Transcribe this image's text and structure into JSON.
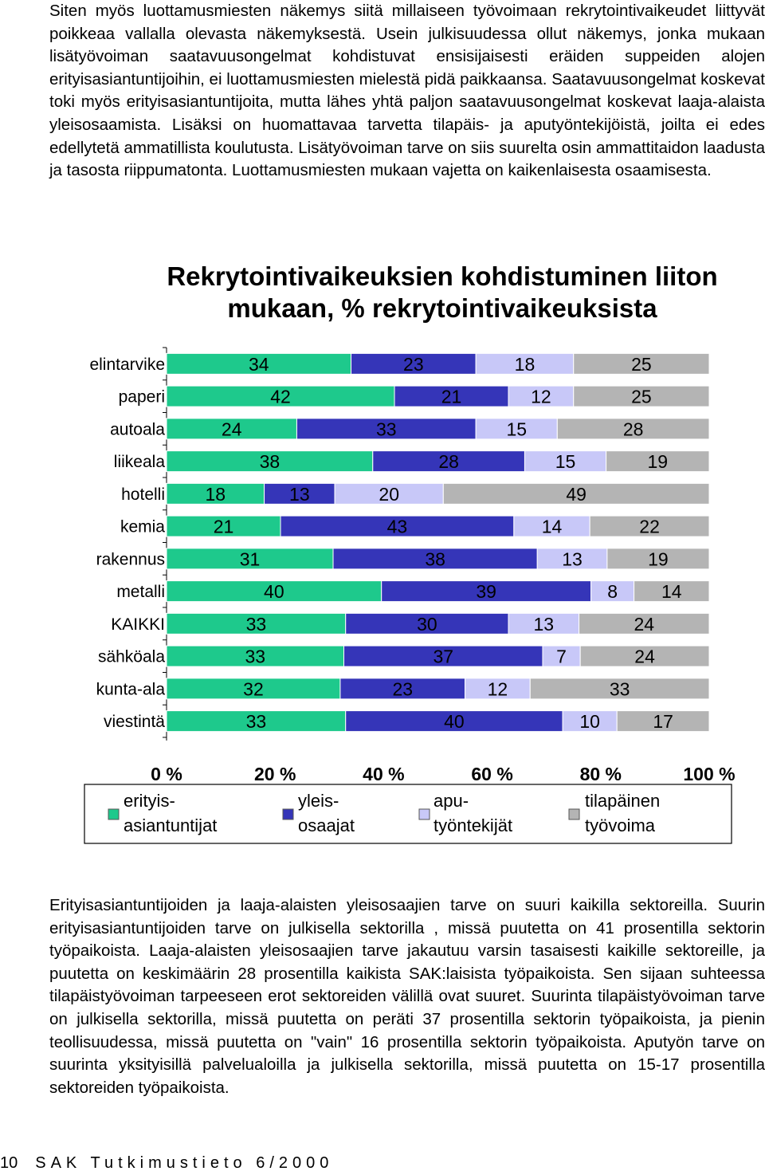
{
  "intro_text": "Siten myös luottamusmiesten näkemys siitä millaiseen työvoimaan rekrytointivaikeudet liittyvät poikkeaa vallalla olevasta näkemyksestä. Usein julkisuudessa ollut näkemys, jonka mukaan lisätyövoiman saatavuusongelmat kohdistuvat ensisijaisesti eräiden suppeiden alojen erityisasiantuntijoihin, ei luottamusmiesten mielestä pidä paikkaansa. Saatavuusongelmat koskevat toki myös erityisasiantuntijoita, mutta lähes yhtä paljon saatavuusongelmat koskevat laaja-alaista yleisosaamista. Lisäksi on huomattavaa tarvetta tilapäis- ja aputyöntekijöistä, joilta ei edes edellytetä ammatillista koulutusta. Lisätyövoiman tarve on siis suurelta osin ammattitaidon laadusta ja tasosta riippumatonta. Luottamusmiesten mukaan vajetta on kaikenlaisesta osaamisesta.",
  "chart_data": {
    "type": "bar",
    "orientation": "horizontal",
    "stacked": "percent",
    "title": "Rekrytointivaikeuksien kohdistuminen liiton mukaan, % rekrytointivaikeuksista",
    "categories": [
      "elintarvike",
      "paperi",
      "autoala",
      "liikeala",
      "hotelli",
      "kemia",
      "rakennus",
      "metalli",
      "KAIKKI",
      "sähköala",
      "kunta-ala",
      "viestintä"
    ],
    "series": [
      {
        "name": "erityis-asiantuntijat",
        "legend_lines": [
          "erityis-",
          "asiantuntijat"
        ],
        "color": "#1ec98c",
        "values": [
          34,
          42,
          24,
          38,
          18,
          21,
          31,
          40,
          33,
          33,
          32,
          33
        ]
      },
      {
        "name": "yleis-osaajat",
        "legend_lines": [
          "yleis-",
          "osaajat"
        ],
        "color": "#3535b8",
        "values": [
          23,
          21,
          33,
          28,
          13,
          43,
          38,
          39,
          30,
          37,
          23,
          40
        ]
      },
      {
        "name": "apu-työntekijät",
        "legend_lines": [
          "apu-",
          "työntekijät"
        ],
        "color": "#c8c8f8",
        "values": [
          18,
          12,
          15,
          15,
          20,
          14,
          13,
          8,
          13,
          7,
          12,
          10
        ]
      },
      {
        "name": "tilapäinen työvoima",
        "legend_lines": [
          "tilapäinen",
          "työvoima"
        ],
        "color": "#b4b4b4",
        "values": [
          25,
          25,
          28,
          19,
          49,
          22,
          19,
          14,
          24,
          24,
          33,
          17
        ]
      }
    ],
    "xticks": [
      "0 %",
      "20 %",
      "40 %",
      "60 %",
      "80 %",
      "100 %"
    ],
    "xlim": [
      0,
      100
    ],
    "legend_position": "bottom",
    "grid": false
  },
  "outro_text": "Erityisasiantuntijoiden ja laaja-alaisten yleisosaajien tarve on suuri kaikilla sektoreilla. Suurin erityisasiantuntijoiden tarve on julkisella sektorilla , missä puutetta on 41 prosentilla sektorin työpaikoista. Laaja-alaisten yleisosaajien tarve jakautuu varsin tasaisesti kaikille sektoreille, ja puutetta on keskimäärin 28 prosentilla kaikista SAK:laisista työpaikoista. Sen sijaan suhteessa tilapäistyövoiman tarpeeseen erot sektoreiden välillä ovat suuret. Suurinta tilapäistyövoiman tarve on julkisella sektorilla, missä puutetta on peräti 37 prosentilla sektorin työpaikoista, ja pienin teollisuudessa, missä puutetta on \"vain\" 16 prosentilla sektorin työpaikoista. Aputyön tarve on suurinta yksityisillä palvelualoilla ja julkisella sektorilla, missä puutetta on 15-17 prosentilla sektoreiden työpaikoista.",
  "footer": {
    "page_number": "10",
    "publication": "SAK Tutkimustieto 6/2000"
  }
}
